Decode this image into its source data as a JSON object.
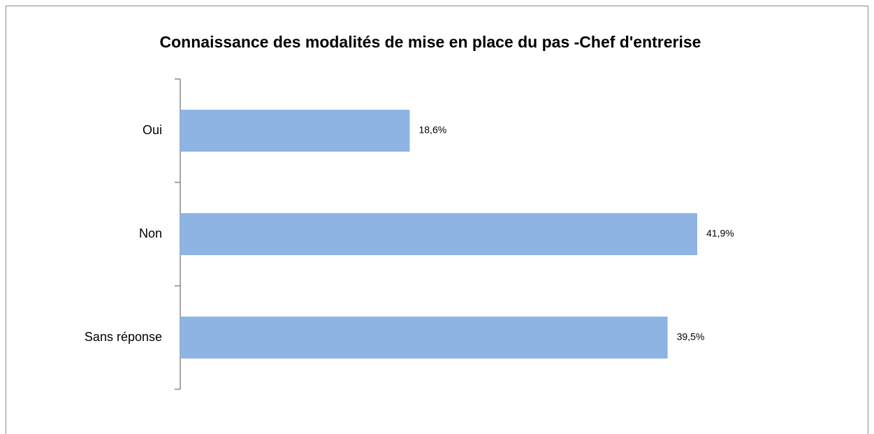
{
  "chart_data": {
    "type": "barh",
    "title": "Connaissance des modalités de mise en place du pas -Chef d'entrerise",
    "categories": [
      "Oui",
      "Non",
      "Sans réponse"
    ],
    "values": [
      18.6,
      41.9,
      39.5
    ],
    "value_labels": [
      "18,6%",
      "41,9%",
      "39,5%"
    ],
    "color": "#8eb4e3"
  }
}
